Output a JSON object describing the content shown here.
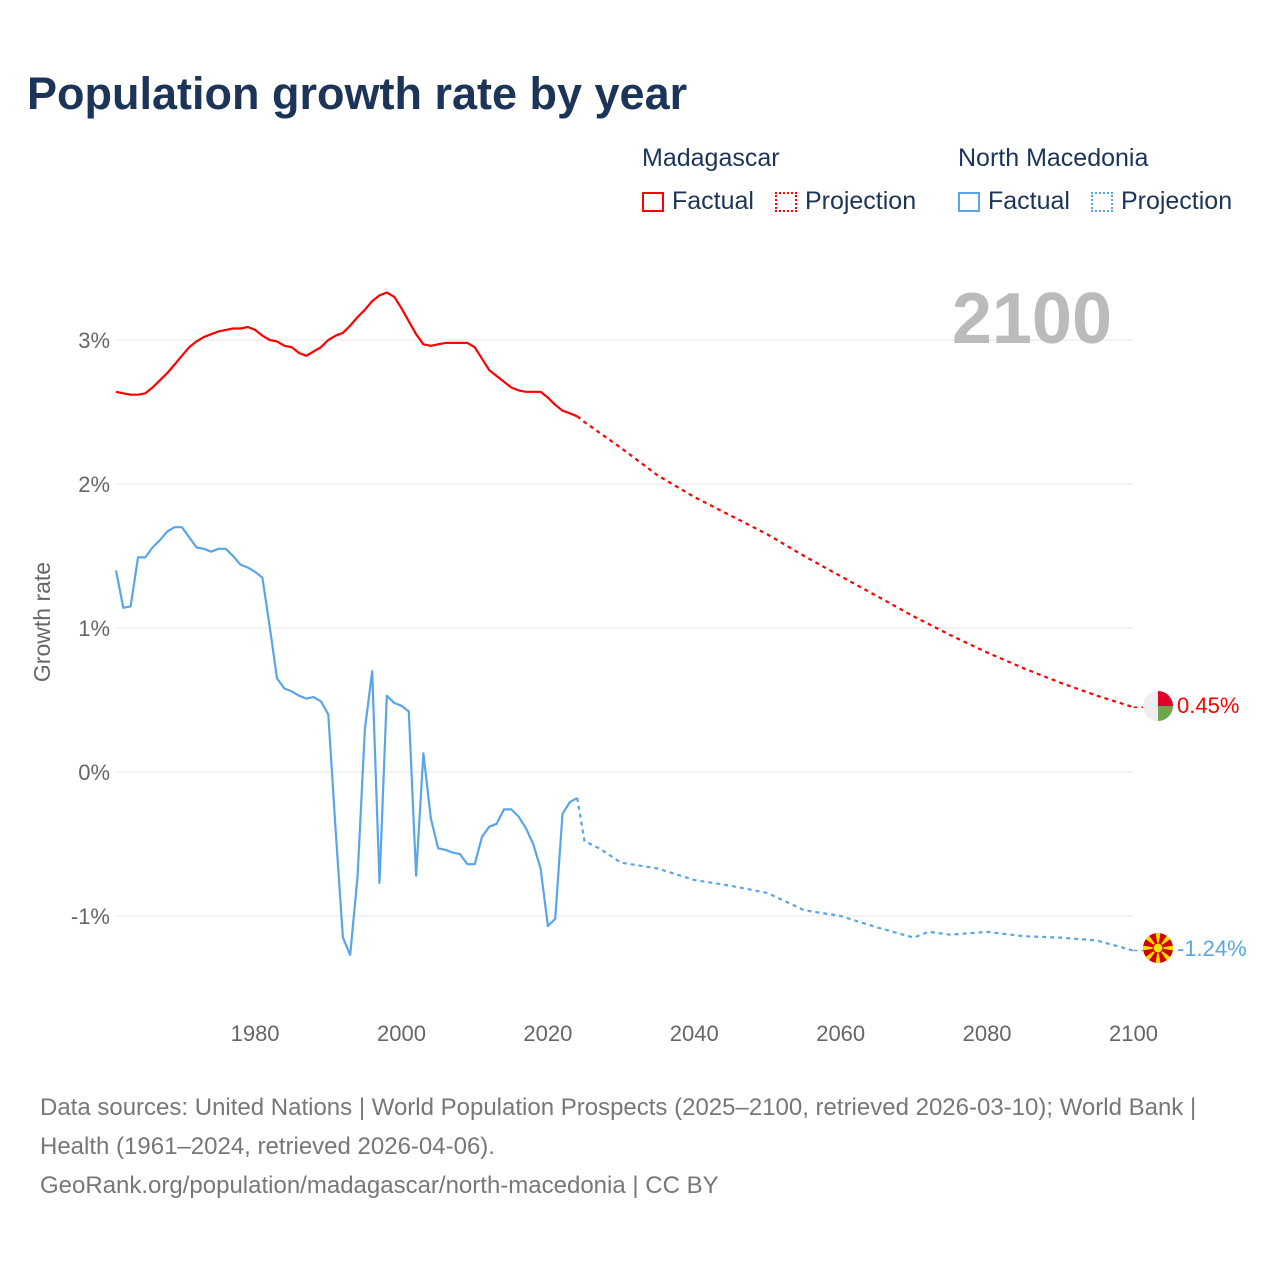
{
  "title": "Population growth rate by year",
  "legend": {
    "groups": [
      {
        "name": "Madagascar",
        "color": "#ff0000",
        "factual": "Factual",
        "projection": "Projection"
      },
      {
        "name": "North Macedonia",
        "color": "#5aa5e8",
        "factual": "Factual",
        "projection": "Projection"
      }
    ]
  },
  "footer": {
    "sources": "Data sources: United Nations | World Population Prospects (2025–2100, retrieved 2026-03-10); World Bank | Health (1961–2024, retrieved 2026-04-06).",
    "link": "GeoRank.org/population/madagascar/north-macedonia | CC BY"
  },
  "chart_data": {
    "type": "line",
    "title": "Population growth rate by year",
    "xlabel": "",
    "ylabel": "Growth rate",
    "year_label": "2100",
    "xlim": [
      1961,
      2100
    ],
    "ylim": [
      -1.6,
      3.6
    ],
    "x_ticks": [
      "1980",
      "2000",
      "2020",
      "2040",
      "2060",
      "2080",
      "2100"
    ],
    "y_ticks": [
      {
        "v": 3,
        "label": "3%"
      },
      {
        "v": 2,
        "label": "2%"
      },
      {
        "v": 1,
        "label": "1%"
      },
      {
        "v": 0,
        "label": "0%"
      },
      {
        "v": -1,
        "label": "-1%"
      }
    ],
    "grid": true,
    "series": [
      {
        "name": "Madagascar",
        "color": "#ff0000",
        "end_label": "0.45%",
        "factual": {
          "x_start": 1961,
          "values": [
            2.64,
            2.63,
            2.62,
            2.62,
            2.63,
            2.67,
            2.72,
            2.77,
            2.83,
            2.89,
            2.95,
            2.99,
            3.02,
            3.04,
            3.06,
            3.07,
            3.08,
            3.08,
            3.09,
            3.07,
            3.03,
            3.0,
            2.99,
            2.96,
            2.95,
            2.91,
            2.89,
            2.92,
            2.95,
            3.0,
            3.03,
            3.05,
            3.1,
            3.16,
            3.21,
            3.27,
            3.31,
            3.33,
            3.3,
            3.22,
            3.13,
            3.04,
            2.97,
            2.96,
            2.97,
            2.98,
            2.98,
            2.98,
            2.98,
            2.95,
            2.87,
            2.79,
            2.75,
            2.71,
            2.67,
            2.65,
            2.64,
            2.64,
            2.64,
            2.6,
            2.55,
            2.51,
            2.49,
            2.47
          ]
        },
        "projection": {
          "x": [
            2024,
            2025,
            2030,
            2035,
            2040,
            2045,
            2050,
            2055,
            2060,
            2065,
            2070,
            2075,
            2080,
            2085,
            2090,
            2095,
            2100
          ],
          "values": [
            2.47,
            2.43,
            2.25,
            2.06,
            1.91,
            1.78,
            1.65,
            1.5,
            1.36,
            1.22,
            1.08,
            0.95,
            0.83,
            0.72,
            0.62,
            0.53,
            0.45
          ]
        }
      },
      {
        "name": "North Macedonia",
        "color": "#5aa5e8",
        "end_label": "-1.24%",
        "factual": {
          "x_start": 1961,
          "values": [
            1.4,
            1.14,
            1.15,
            1.49,
            1.49,
            1.56,
            1.61,
            1.67,
            1.7,
            1.7,
            1.63,
            1.56,
            1.55,
            1.53,
            1.55,
            1.55,
            1.5,
            1.44,
            1.42,
            1.39,
            1.35,
            1.01,
            0.65,
            0.58,
            0.56,
            0.53,
            0.51,
            0.52,
            0.49,
            0.4,
            -0.4,
            -1.15,
            -1.27,
            -0.72,
            0.3,
            0.7,
            -0.77,
            0.53,
            0.48,
            0.46,
            0.42,
            -0.72,
            0.13,
            -0.32,
            -0.53,
            -0.54,
            -0.56,
            -0.57,
            -0.64,
            -0.64,
            -0.45,
            -0.38,
            -0.36,
            -0.26,
            -0.26,
            -0.31,
            -0.39,
            -0.5,
            -0.67,
            -1.07,
            -1.02,
            -0.29,
            -0.21,
            -0.18
          ]
        },
        "projection": {
          "x": [
            2024,
            2025,
            2027,
            2030,
            2035,
            2040,
            2045,
            2050,
            2055,
            2060,
            2065,
            2070,
            2072,
            2075,
            2080,
            2085,
            2090,
            2095,
            2100
          ],
          "values": [
            -0.18,
            -0.48,
            -0.53,
            -0.63,
            -0.67,
            -0.75,
            -0.79,
            -0.84,
            -0.96,
            -1.0,
            -1.08,
            -1.15,
            -1.11,
            -1.13,
            -1.11,
            -1.14,
            -1.15,
            -1.17,
            -1.24
          ]
        }
      }
    ]
  }
}
